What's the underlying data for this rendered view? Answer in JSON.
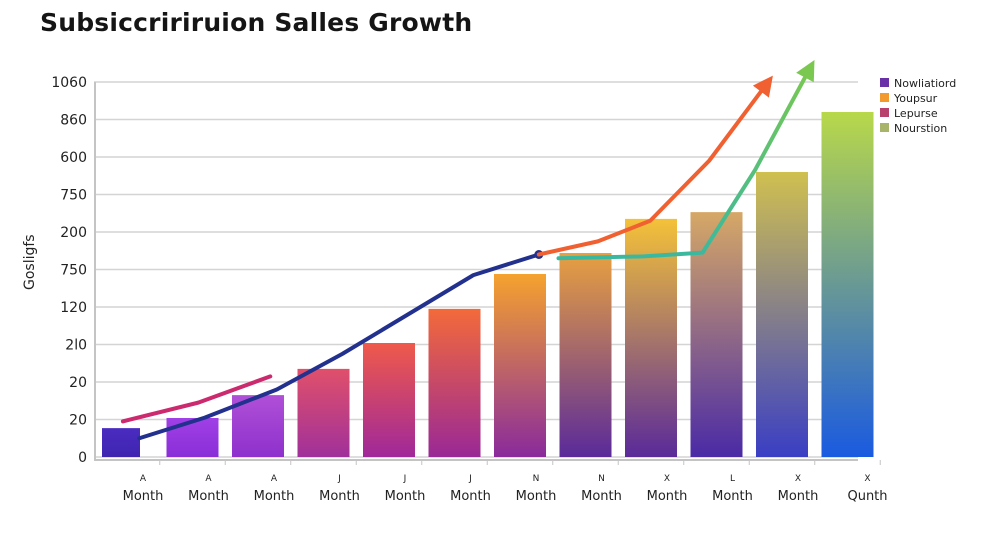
{
  "chart_data": {
    "type": "bar",
    "title": "Subsiccririruion Salles Growth",
    "xlabel": "",
    "ylabel": "Gosligfs",
    "grid": true,
    "y_tick_labels": [
      "0",
      "20",
      "20",
      "2l0",
      "120",
      "750",
      "200",
      "750",
      "600",
      "860",
      "1060"
    ],
    "ylim_tick_index": [
      0,
      10
    ],
    "categories": [
      {
        "letter": "A",
        "label": "Month"
      },
      {
        "letter": "A",
        "label": "Month"
      },
      {
        "letter": "A",
        "label": "Month"
      },
      {
        "letter": "J",
        "label": "Month"
      },
      {
        "letter": "J",
        "label": "Month"
      },
      {
        "letter": "J",
        "label": "Month"
      },
      {
        "letter": "N",
        "label": "Month"
      },
      {
        "letter": "N",
        "label": "Month"
      },
      {
        "letter": "X",
        "label": "Month"
      },
      {
        "letter": "L",
        "label": "Month"
      },
      {
        "letter": "X",
        "label": "Month"
      },
      {
        "letter": "X",
        "label": "Qunth"
      }
    ],
    "bars": {
      "values_tick_index": [
        0.77,
        1.04,
        1.65,
        2.35,
        3.04,
        3.95,
        4.88,
        5.44,
        6.35,
        6.53,
        7.6,
        9.2
      ],
      "top_colors": [
        "#4a2cc0",
        "#a040e6",
        "#b050d8",
        "#e0506a",
        "#ef5a4a",
        "#f36a3a",
        "#f5a22e",
        "#e8a040",
        "#f4c238",
        "#d6a866",
        "#d0c050",
        "#b8d84a"
      ],
      "bottom_colors": [
        "#3f24b0",
        "#8a2ed8",
        "#8e30cc",
        "#a0309a",
        "#a0289a",
        "#9a2896",
        "#8a2a9c",
        "#5a2a9a",
        "#5a2a9a",
        "#4a2aa6",
        "#3a3ec4",
        "#1a5ae0"
      ]
    },
    "series_lines": [
      {
        "name": "pink-line",
        "color": "#cc2a6e",
        "points_xi_yi": [
          [
            0.35,
            0.95
          ],
          [
            1.5,
            1.45
          ],
          [
            2.6,
            2.15
          ]
        ],
        "arrow": false
      },
      {
        "name": "navy-line",
        "color": "#22308e",
        "points_xi_yi": [
          [
            0.6,
            0.5
          ],
          [
            1.6,
            1.05
          ],
          [
            2.7,
            1.8
          ],
          [
            3.7,
            2.75
          ],
          [
            4.7,
            3.8
          ],
          [
            5.7,
            4.85
          ],
          [
            6.7,
            5.4
          ]
        ],
        "arrow": false,
        "end_marker": true
      },
      {
        "name": "orange-line",
        "color": "#f06030",
        "points_xi_yi": [
          [
            6.7,
            5.4
          ],
          [
            7.6,
            5.75
          ],
          [
            8.4,
            6.3
          ],
          [
            9.3,
            7.9
          ],
          [
            10.2,
            10.0
          ]
        ],
        "arrow": true
      },
      {
        "name": "teal-line",
        "color": "#3ab8a0",
        "end_color": "#7ac850",
        "points_xi_yi": [
          [
            7.0,
            5.3
          ],
          [
            8.3,
            5.35
          ],
          [
            9.2,
            5.45
          ],
          [
            10.0,
            7.65
          ],
          [
            10.85,
            10.4
          ]
        ],
        "arrow": true
      }
    ],
    "legend": {
      "position": "top-right",
      "entries": [
        {
          "label": "Nowliatiord",
          "color": "#6a2ea6"
        },
        {
          "label": "Youpsur",
          "color": "#f39a2e"
        },
        {
          "label": "Lepurse",
          "color": "#b8406e"
        },
        {
          "label": "Nourstion",
          "color": "#a8b46a"
        }
      ]
    }
  }
}
